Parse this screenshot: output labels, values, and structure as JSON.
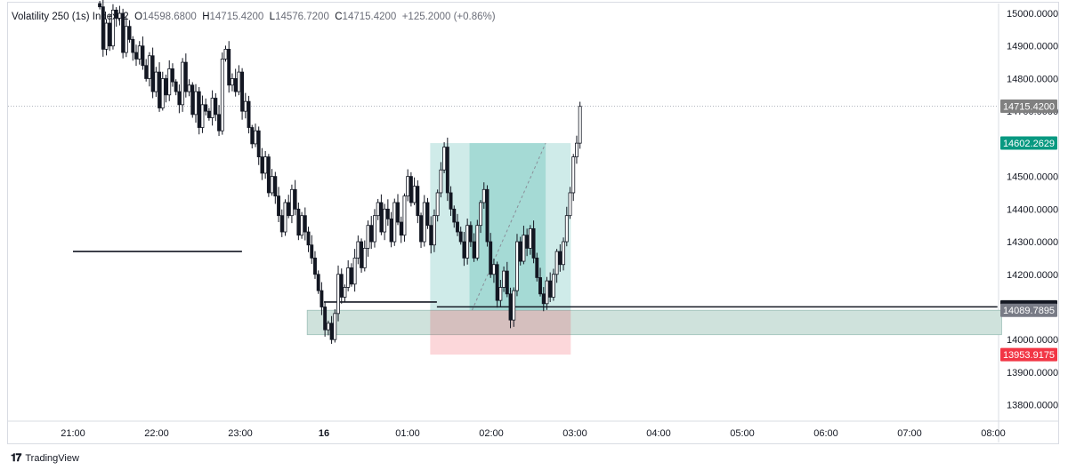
{
  "header": {
    "symbol": "Volatility 250 (1s) Index",
    "interval": "2",
    "open_label": "O",
    "open": "14598.6800",
    "high_label": "H",
    "high": "14715.4200",
    "low_label": "L",
    "low": "14576.7200",
    "close_label": "C",
    "close": "14715.4200",
    "change": "+125.2000 (+0.86%)"
  },
  "brand": {
    "logo_icon": "tradingview-logo-icon",
    "name": "TradingView"
  },
  "colors": {
    "up": "#ffffff",
    "down": "#131722",
    "outline": "#131722",
    "reward_zone": "#26a69a",
    "risk_zone": "#f23645",
    "price_tag_last": "#808080",
    "price_tag_target": "#089981",
    "price_tag_stop": "#f23645",
    "level_tag": "#131722",
    "zone_tag": "#787b86",
    "grid": "#e6e8ec"
  },
  "chart_data": {
    "type": "candlestick",
    "ylim": [
      13750,
      15030
    ],
    "xlim": [
      "21:00 (15)",
      "08:00 (16)"
    ],
    "y_ticks": [
      "15000.0000",
      "14900.0000",
      "14800.0000",
      "14700.0000",
      "14500.0000",
      "14400.0000",
      "14300.0000",
      "14200.0000",
      "14000.0000",
      "13900.0000",
      "13800.0000"
    ],
    "y_tick_values": [
      15000,
      14900,
      14800,
      14700,
      14500,
      14400,
      14300,
      14200,
      14000,
      13900,
      13800
    ],
    "x_ticks": [
      "21:00",
      "22:00",
      "23:00",
      "16",
      "01:00",
      "02:00",
      "03:00",
      "04:00",
      "05:00",
      "06:00",
      "07:00",
      "08:00"
    ],
    "x_tick_hours": [
      0,
      1,
      2,
      3,
      4,
      5,
      6,
      7,
      8,
      9,
      10,
      11
    ],
    "candle_minutes": 2,
    "first_candle_hour": 0.32,
    "closes": [
      15020,
      14890,
      14970,
      14900,
      15010,
      14985,
      15000,
      14880,
      14960,
      14920,
      14880,
      14860,
      14900,
      14840,
      14800,
      14870,
      14760,
      14820,
      14710,
      14800,
      14750,
      14830,
      14790,
      14760,
      14720,
      14850,
      14760,
      14780,
      14690,
      14760,
      14650,
      14720,
      14700,
      14680,
      14740,
      14690,
      14640,
      14860,
      14890,
      14780,
      14800,
      14760,
      14820,
      14700,
      14730,
      14650,
      14600,
      14640,
      14560,
      14510,
      14560,
      14450,
      14500,
      14440,
      14380,
      14330,
      14420,
      14380,
      14460,
      14400,
      14320,
      14380,
      14330,
      14290,
      14250,
      14200,
      14150,
      14100,
      14030,
      14050,
      14000,
      14080,
      14200,
      14130,
      14160,
      14220,
      14170,
      14250,
      14300,
      14220,
      14280,
      14350,
      14300,
      14380,
      14420,
      14330,
      14400,
      14370,
      14300,
      14420,
      14360,
      14320,
      14440,
      14500,
      14420,
      14470,
      14380,
      14300,
      14420,
      14350,
      14290,
      14380,
      14450,
      14520,
      14590,
      14450,
      14400,
      14360,
      14330,
      14300,
      14250,
      14350,
      14300,
      14250,
      14350,
      14420,
      14460,
      14300,
      14200,
      14230,
      14120,
      14160,
      14210,
      14140,
      14060,
      14150,
      14300,
      14240,
      14320,
      14280,
      14340,
      14250,
      14190,
      14140,
      14110,
      14180,
      14130,
      14200,
      14270,
      14230,
      14300,
      14380,
      14450,
      14560,
      14602,
      14715
    ],
    "last_price": "14715.4200",
    "horizontal_levels": [
      {
        "name": "left-level",
        "price": 14270,
        "from_hour": 0,
        "to_hour": 2.02
      },
      {
        "name": "mid-level",
        "price": 14115,
        "from_hour": 3.0,
        "to_hour": 4.35
      },
      {
        "name": "key-level",
        "price": 14100.33,
        "from_hour": 4.35,
        "to_hour": 11.05
      }
    ],
    "demand_zone": {
      "top": 14089.7895,
      "bottom": 14015,
      "from_hour": 2.8,
      "to_hour": 11.1
    },
    "position": {
      "type": "long",
      "entry": 14089.7895,
      "target": 14602.2629,
      "stop": 13953.9175,
      "from_hour": 4.27,
      "to_hour": 5.95,
      "filled_to_hour": 5.65
    },
    "price_tags": [
      {
        "label": "14715.4200",
        "value": 14715.42,
        "kind": "last"
      },
      {
        "label": "14602.2629",
        "value": 14602.2629,
        "kind": "target"
      },
      {
        "label": "14100.3300",
        "value": 14100.33,
        "kind": "level"
      },
      {
        "label": "14089.7895",
        "value": 14089.7895,
        "kind": "zone"
      },
      {
        "label": "13953.9175",
        "value": 13953.9175,
        "kind": "stop"
      }
    ]
  }
}
